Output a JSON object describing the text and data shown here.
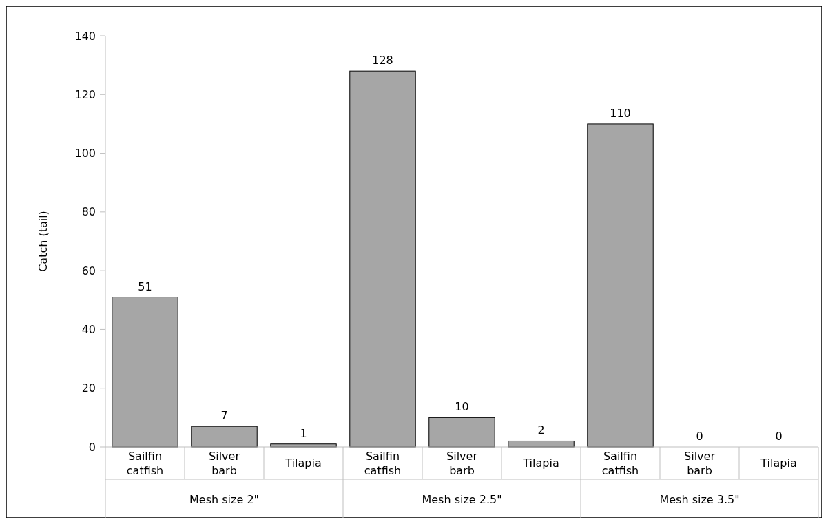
{
  "chart_data": {
    "type": "bar",
    "ylabel": "Catch (tail)",
    "categories": [
      "Sailfin catfish",
      "Silver barb",
      "Tilapia",
      "Sailfin catfish",
      "Silver barb",
      "Tilapia",
      "Sailfin catfish",
      "Silver barb",
      "Tilapia"
    ],
    "values": [
      51,
      7,
      1,
      128,
      10,
      2,
      110,
      0,
      0
    ],
    "color": "#a6a6a6",
    "ylim": [
      0,
      140
    ],
    "yticks": [
      0,
      20,
      40,
      60,
      80,
      100,
      120,
      140
    ],
    "data_labels": true,
    "grid": false,
    "annotations": [
      "Mesh size 2\"",
      "Mesh size 2.5\"",
      "Mesh size 3.5\""
    ]
  }
}
